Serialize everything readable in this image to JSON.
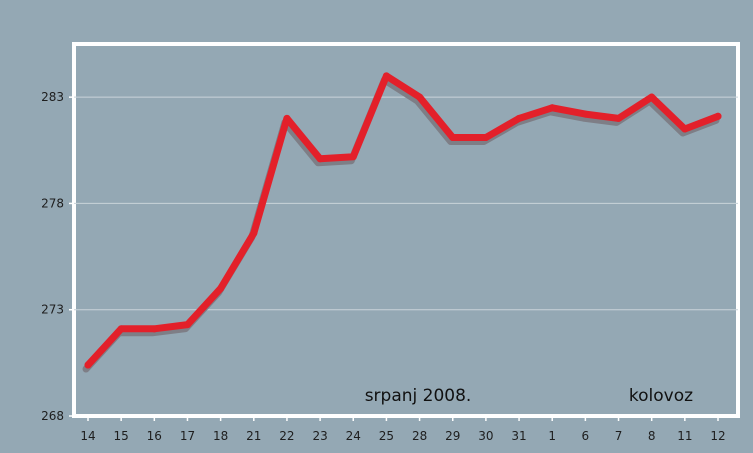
{
  "chart_data": {
    "type": "line",
    "x": [
      "14",
      "15",
      "16",
      "17",
      "18",
      "21",
      "22",
      "23",
      "24",
      "25",
      "28",
      "29",
      "30",
      "31",
      "1",
      "6",
      "7",
      "8",
      "11",
      "12"
    ],
    "series": [
      {
        "values": [
          270.4,
          272.1,
          272.1,
          272.3,
          274.0,
          276.6,
          282.0,
          280.1,
          280.2,
          284.0,
          283.0,
          281.1,
          281.1,
          282.0,
          282.5,
          282.2,
          282.0,
          283.0,
          281.5,
          282.1
        ]
      }
    ],
    "y_ticks": [
      "268",
      "273",
      "278",
      "283"
    ],
    "ylim": [
      268,
      285.5
    ],
    "grid": true,
    "line_color": "#e3202a",
    "shadow_color": "#7e7e86",
    "annotations": [
      {
        "text": "srpanj 2008."
      },
      {
        "text": "kolovoz"
      }
    ]
  }
}
